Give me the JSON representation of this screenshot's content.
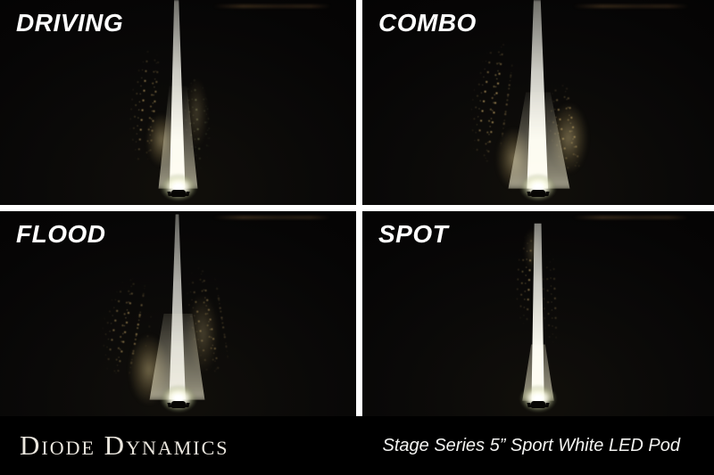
{
  "panels": [
    {
      "id": "driving",
      "label": "DRIVING"
    },
    {
      "id": "combo",
      "label": "COMBO"
    },
    {
      "id": "flood",
      "label": "FLOOD"
    },
    {
      "id": "spot",
      "label": "SPOT"
    }
  ],
  "footer": {
    "brand": "Diode Dynamics",
    "product": "Stage Series 5” Sport White LED Pod"
  },
  "colors": {
    "divider": "#ffffff",
    "background": "#000000",
    "label_text": "#ffffff",
    "brand_text": "#eae6de",
    "product_text": "#f4f4f2",
    "beam_core": "#fffdf2",
    "scatter_tan": "#b09455"
  }
}
